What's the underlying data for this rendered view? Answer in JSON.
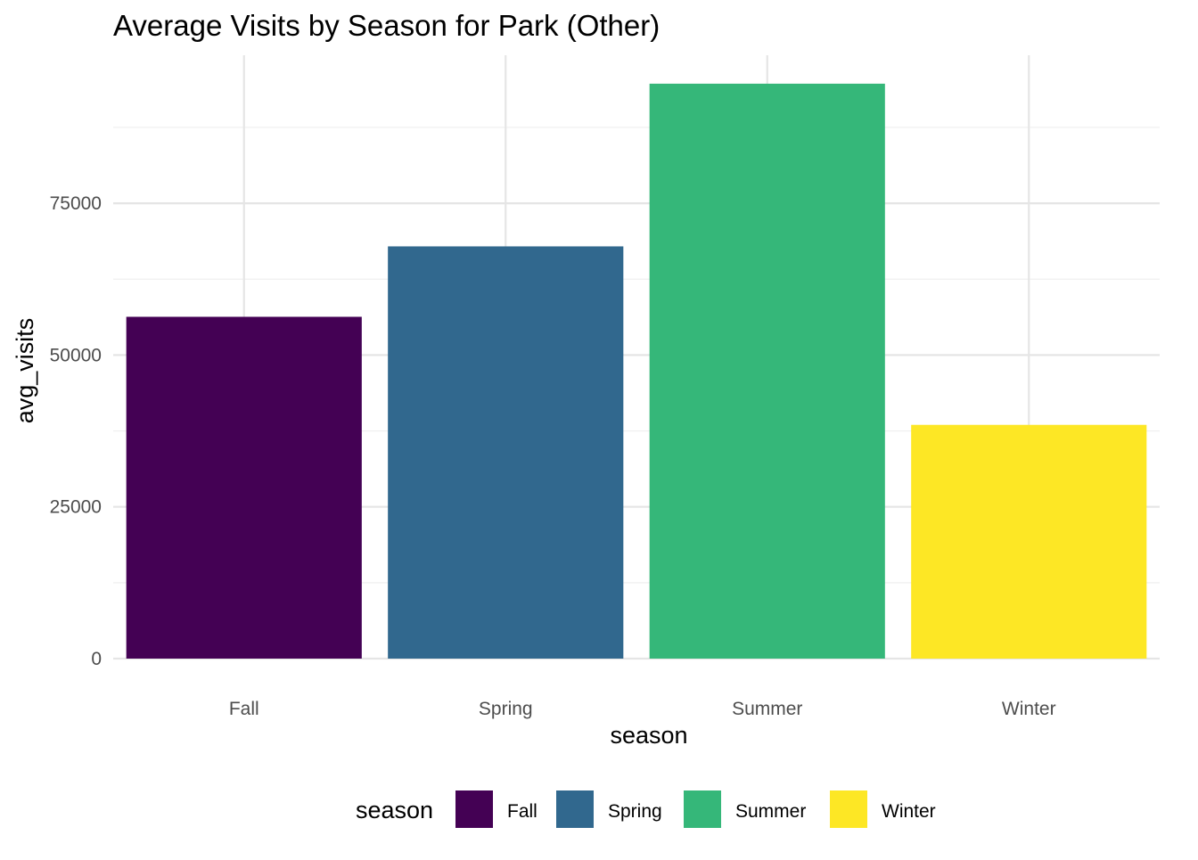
{
  "chart_data": {
    "type": "bar",
    "title": "Average Visits by Season for Park (Other)",
    "xlabel": "season",
    "ylabel": "avg_visits",
    "categories": [
      "Fall",
      "Spring",
      "Summer",
      "Winter"
    ],
    "values": [
      56300,
      67900,
      94700,
      38500
    ],
    "colors": [
      "#440154",
      "#31688E",
      "#35B779",
      "#FDE725"
    ],
    "ylim": [
      0,
      100000
    ],
    "y_ticks": [
      0,
      25000,
      50000,
      75000
    ],
    "y_tick_labels": [
      "0",
      "25000",
      "50000",
      "75000"
    ],
    "grid": true,
    "legend": {
      "title": "season",
      "position": "bottom",
      "items": [
        "Fall",
        "Spring",
        "Summer",
        "Winter"
      ]
    }
  }
}
